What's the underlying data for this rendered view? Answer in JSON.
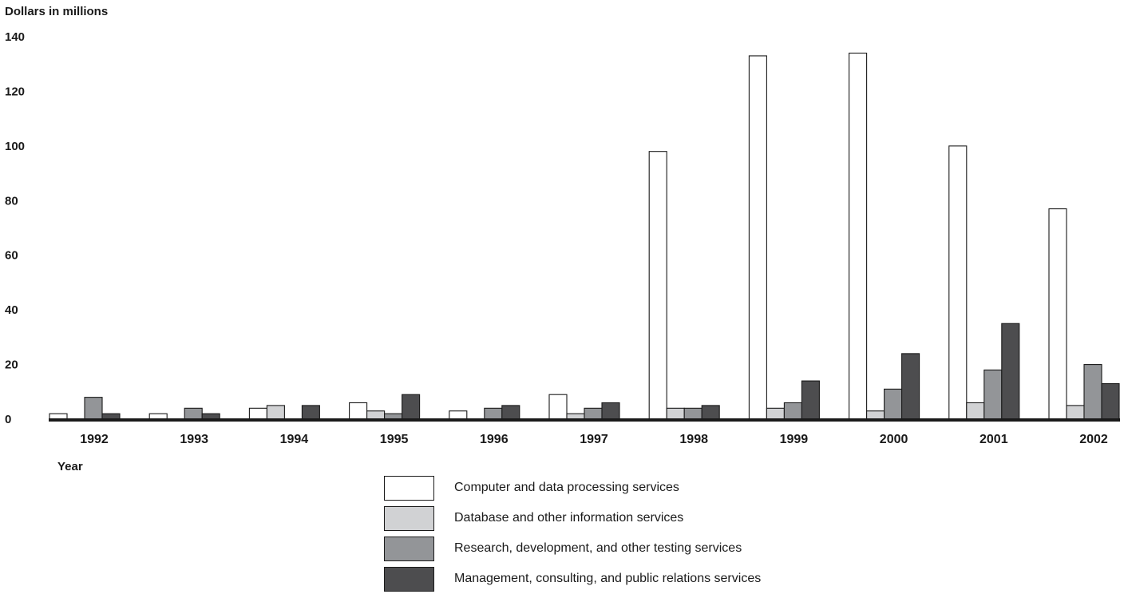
{
  "chart_data": {
    "type": "bar",
    "ylabel": "Dollars in millions",
    "xlabel": "Year",
    "ylim": [
      0,
      140
    ],
    "yticks": [
      "0",
      "20",
      "40",
      "60",
      "80",
      "100",
      "120",
      "140"
    ],
    "grid": false,
    "legend_position": "bottom-center",
    "categories": [
      "1992",
      "1993",
      "1994",
      "1995",
      "1996",
      "1997",
      "1998",
      "1999",
      "2000",
      "2001",
      "2002"
    ],
    "series": [
      {
        "name": "Computer and data processing services",
        "color": "#ffffff",
        "values": [
          2,
          2,
          4,
          6,
          3,
          9,
          98,
          133,
          134,
          100,
          77
        ]
      },
      {
        "name": "Database and other information services",
        "color": "#d1d2d4",
        "values": [
          0,
          0,
          5,
          3,
          0,
          2,
          4,
          4,
          3,
          6,
          5
        ]
      },
      {
        "name": "Research, development, and other testing services",
        "color": "#939598",
        "values": [
          8,
          4,
          0,
          2,
          4,
          4,
          4,
          6,
          11,
          18,
          20
        ]
      },
      {
        "name": "Management, consulting, and public relations services",
        "color": "#4d4d4f",
        "values": [
          2,
          2,
          5,
          9,
          5,
          6,
          5,
          14,
          24,
          35,
          13
        ]
      }
    ]
  }
}
